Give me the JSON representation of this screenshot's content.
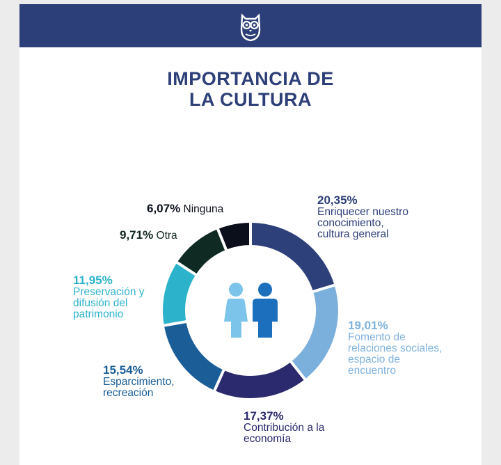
{
  "header": {
    "logo_icon": "owl-logo-icon",
    "background": "#2c3f78"
  },
  "title": {
    "line1": "IMPORTANCIA DE",
    "line2": "LA CULTURA"
  },
  "center_icon": "people-icon",
  "chart_data": {
    "type": "pie",
    "donut": true,
    "slices": [
      {
        "value": 20.35,
        "value_label": "20,35%",
        "label": "Enriquecer nuestro conocimiento, cultura general",
        "lines": [
          "Enriquecer nuestro",
          "conocimiento,",
          "cultura general"
        ],
        "color": "#2d4079",
        "text_color": "#2c3f78"
      },
      {
        "value": 19.01,
        "value_label": "19,01%",
        "label": "Fomento de relaciones sociales, espacio de encuentro",
        "lines": [
          "Fomento de",
          "relaciones sociales,",
          "espacio de",
          "encuentro"
        ],
        "color": "#7cb0dc",
        "text_color": "#7fb2dd"
      },
      {
        "value": 17.37,
        "value_label": "17,37%",
        "label": "Contribución a la economía",
        "lines": [
          "Contribución a la",
          "economía"
        ],
        "color": "#2b2a6e",
        "text_color": "#2b2a6e"
      },
      {
        "value": 15.54,
        "value_label": "15,54%",
        "label": "Esparcimiento, recreación",
        "lines": [
          "Esparcimiento,",
          "recreación"
        ],
        "color": "#1a5d97",
        "text_color": "#1a5d97"
      },
      {
        "value": 11.95,
        "value_label": "11,95%",
        "label": "Preservación y difusión del patrimonio",
        "lines": [
          "Preservación y",
          "difusión del",
          "patrimonio"
        ],
        "color": "#2cb3cb",
        "text_color": "#2cb3cb"
      },
      {
        "value": 9.71,
        "value_label": "9,71%",
        "label": "Otra",
        "lines": [
          "Otra"
        ],
        "color": "#0e2a22",
        "text_color": "#10261f"
      },
      {
        "value": 6.07,
        "value_label": "6,07%",
        "label": "Ninguna",
        "lines": [
          "Ninguna"
        ],
        "color": "#0b0f1c",
        "text_color": "#0b0f1c"
      }
    ]
  }
}
